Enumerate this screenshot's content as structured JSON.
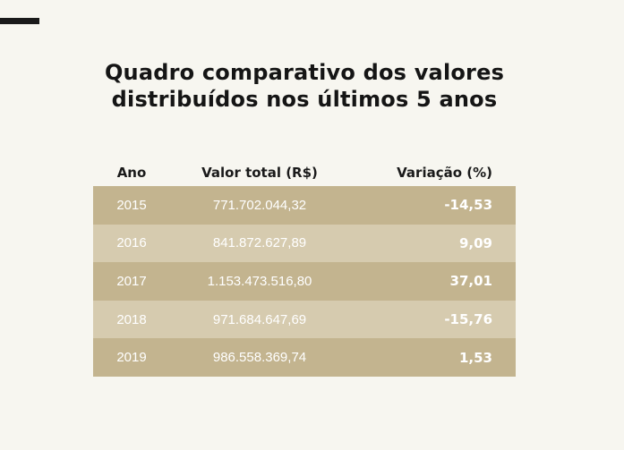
{
  "title": {
    "line1": "Quadro comparativo dos valores",
    "line2": "distribuídos nos últimos 5 anos"
  },
  "table": {
    "headers": [
      "Ano",
      "Valor total (R$)",
      "Variação (%)"
    ],
    "rows": [
      {
        "ano": "2015",
        "valor": "771.702.044,32",
        "variacao": "-14,53"
      },
      {
        "ano": "2016",
        "valor": "841.872.627,89",
        "variacao": "9,09"
      },
      {
        "ano": "2017",
        "valor": "1.153.473.516,80",
        "variacao": "37,01"
      },
      {
        "ano": "2018",
        "valor": "971.684.647,69",
        "variacao": "-15,76"
      },
      {
        "ano": "2019",
        "valor": "986.558.369,74",
        "variacao": "1,53"
      }
    ]
  },
  "colors": {
    "row_dark": "#c3b48f",
    "row_light": "#d6cbaf",
    "background": "#f7f6f0"
  }
}
